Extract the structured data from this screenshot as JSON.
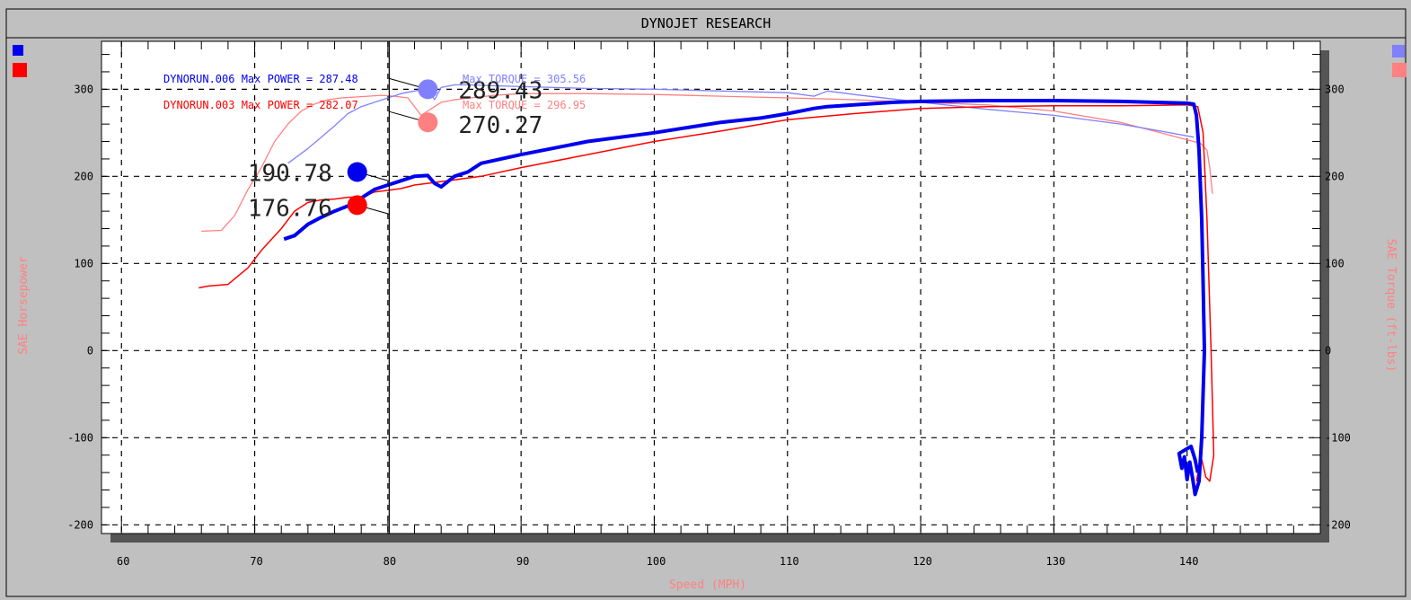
{
  "chart_data": {
    "type": "line",
    "title": "DYNOJET RESEARCH",
    "xlabel": "Speed (MPH)",
    "ylabel_left": "SAE Horsepower",
    "ylabel_right": "SAE Torque (ft-lbs)",
    "xlim": [
      58.5,
      150
    ],
    "ylim": [
      -210,
      355
    ],
    "x_ticks": [
      60,
      70,
      80,
      90,
      100,
      110,
      120,
      130,
      140
    ],
    "y_ticks": [
      -200,
      -100,
      0,
      100,
      200,
      300
    ],
    "grid": true,
    "cursor_x": 80.1,
    "colors": {
      "run006_power": "#0000ee",
      "run006_torque": "#8080ff",
      "run003_power": "#ff0000",
      "run003_torque": "#ff8080",
      "axis_title": "#ff8080"
    },
    "legend": [
      {
        "run": "DYNORUN.006",
        "power_text": "Max POWER = 287.48",
        "torque_text": "Max TORQUE = 305.56"
      },
      {
        "run": "DYNORUN.003",
        "power_text": "Max POWER = 282.07",
        "torque_text": "Max TORQUE = 296.95"
      }
    ],
    "cursor_values": [
      {
        "series": "run006_power",
        "value": "190.78",
        "marker_x": 77.7,
        "marker_y": 205
      },
      {
        "series": "run003_power",
        "value": "176.76",
        "marker_x": 77.7,
        "marker_y": 167
      },
      {
        "series": "run006_torque",
        "value": "289.43",
        "marker_x": 83.0,
        "marker_y": 300
      },
      {
        "series": "run003_torque",
        "value": "270.27",
        "marker_x": 83.0,
        "marker_y": 262
      }
    ],
    "series": [
      {
        "key": "run006_power",
        "x": [
          72.2,
          73,
          74,
          75,
          76,
          77,
          78,
          79,
          80,
          81,
          82,
          83,
          83.5,
          84,
          85,
          86,
          87,
          90,
          95,
          100,
          105,
          108,
          110,
          112,
          113,
          115,
          118,
          120,
          125,
          130,
          135,
          140,
          140.5,
          140.7,
          140.9,
          141.1,
          141.2,
          141.3,
          141.1,
          140.9,
          140.6,
          140.4,
          140.2,
          140.0,
          139.8,
          139.6,
          139.4,
          140.3,
          140.6,
          140.8
        ],
        "y": [
          128,
          132,
          145,
          153,
          160,
          166,
          175,
          185,
          190,
          195,
          200,
          201,
          192,
          188,
          200,
          205,
          215,
          225,
          240,
          250,
          262,
          267,
          272,
          278,
          280,
          282,
          285,
          286,
          287,
          287,
          286,
          284,
          283,
          270,
          230,
          150,
          80,
          0,
          -100,
          -150,
          -165,
          -145,
          -128,
          -148,
          -122,
          -135,
          -118,
          -110,
          -125,
          -140
        ]
      },
      {
        "key": "run006_torque",
        "x": [
          72.5,
          74,
          75,
          76,
          77,
          78,
          79,
          80,
          81,
          82,
          83,
          83.5,
          84,
          85,
          86,
          88,
          90,
          95,
          100,
          105,
          110,
          112,
          113,
          115,
          120,
          125,
          130,
          135,
          138,
          140.5
        ],
        "y": [
          215,
          232,
          245,
          258,
          272,
          280,
          285,
          290,
          295,
          298,
          300,
          288,
          302,
          305,
          305,
          304,
          303,
          301,
          300,
          298,
          296,
          292,
          298,
          294,
          285,
          277,
          270,
          260,
          252,
          245
        ]
      },
      {
        "key": "run003_power",
        "x": [
          65.8,
          66.5,
          68,
          69.5,
          70.5,
          72,
          73,
          74,
          75,
          76,
          77,
          78,
          79,
          80,
          81,
          82,
          83,
          85,
          87,
          90,
          95,
          100,
          105,
          110,
          115,
          120,
          125,
          130,
          135,
          140,
          140.8,
          141.2,
          141.5,
          141.8,
          142.0,
          141.7,
          141.4,
          141.1,
          140.9,
          140.7
        ],
        "y": [
          72,
          74,
          76,
          95,
          115,
          140,
          160,
          170,
          173,
          174,
          176,
          176,
          182,
          184,
          186,
          190,
          192,
          196,
          200,
          210,
          225,
          240,
          252,
          265,
          272,
          278,
          280,
          281,
          281,
          282,
          280,
          250,
          150,
          0,
          -120,
          -150,
          -145,
          -125,
          -135,
          -150
        ]
      },
      {
        "key": "run003_torque",
        "x": [
          66,
          67.5,
          68.5,
          69.5,
          70.5,
          71.5,
          72.5,
          73.5,
          74.5,
          75.5,
          76.5,
          77.5,
          78.5,
          79.5,
          80.5,
          81.5,
          82.5,
          84,
          85,
          88,
          90,
          95,
          100,
          105,
          110,
          115,
          120,
          125,
          130,
          135,
          138,
          140,
          141,
          141.5,
          141.7,
          141.9
        ],
        "y": [
          137,
          138,
          155,
          185,
          210,
          240,
          260,
          275,
          283,
          288,
          290,
          291,
          292,
          293,
          292,
          290,
          270,
          285,
          288,
          293,
          295,
          295,
          294,
          292,
          290,
          288,
          285,
          282,
          275,
          262,
          250,
          242,
          238,
          230,
          210,
          180
        ]
      }
    ]
  }
}
